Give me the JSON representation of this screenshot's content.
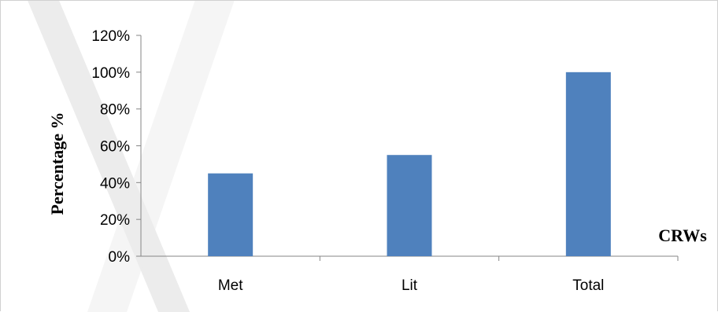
{
  "chart_data": {
    "type": "bar",
    "categories": [
      "Met",
      "Lit",
      "Total"
    ],
    "values": [
      0.45,
      0.55,
      1.0
    ],
    "title": "",
    "xlabel": "CRWs",
    "ylabel": "Percentage %",
    "ylim": [
      0,
      1.2
    ],
    "yticks": [
      0,
      0.2,
      0.4,
      0.6,
      0.8,
      1.0,
      1.2
    ],
    "ytick_labels": [
      "0%",
      "20%",
      "40%",
      "60%",
      "80%",
      "100%",
      "120%"
    ],
    "grid": false,
    "legend": "none",
    "bar_color": "#4f81bd",
    "axis_color": "#868686"
  }
}
